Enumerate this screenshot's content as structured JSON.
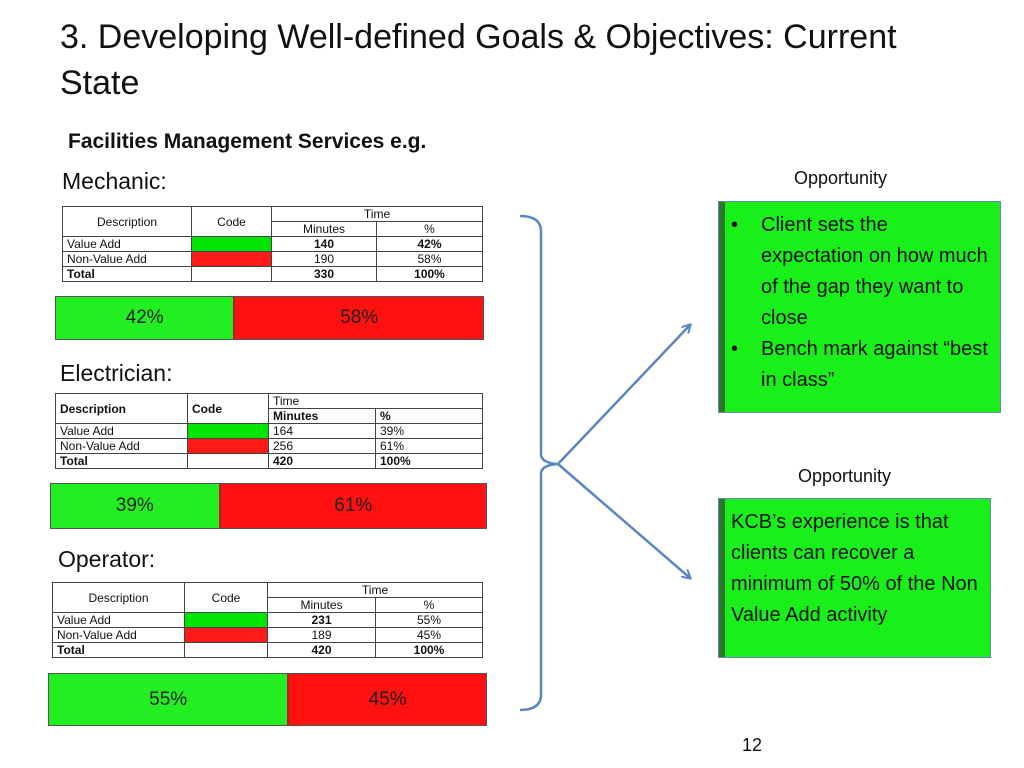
{
  "title": "3. Developing Well-defined Goals & Objectives: Current State",
  "subtitle": "Facilities Management Services e.g.",
  "sections": [
    {
      "label": "Mechanic:",
      "header": {
        "description": "Description",
        "code": "Code",
        "time": "Time",
        "minutes": "Minutes",
        "percent": "%"
      },
      "rows": [
        {
          "description": "Value Add",
          "minutes": "140",
          "percent": "42%"
        },
        {
          "description": "Non-Value Add",
          "minutes": "190",
          "percent": "58%"
        },
        {
          "description": "Total",
          "minutes": "330",
          "percent": "100%"
        }
      ],
      "bar": {
        "green_label": "42%",
        "red_label": "58%",
        "green_fraction": 0.42
      }
    },
    {
      "label": "Electrician:",
      "header": {
        "description": "Description",
        "code": "Code",
        "time": "Time",
        "minutes": "Minutes",
        "percent": "%"
      },
      "rows": [
        {
          "description": "Value Add",
          "minutes": "164",
          "percent": "39%"
        },
        {
          "description": "Non-Value Add",
          "minutes": "256",
          "percent": "61%"
        },
        {
          "description": "Total",
          "minutes": "420",
          "percent": "100%"
        }
      ],
      "bar": {
        "green_label": "39%",
        "red_label": "61%",
        "green_fraction": 0.39
      }
    },
    {
      "label": "Operator:",
      "header": {
        "description": "Description",
        "code": "Code",
        "time": "Time",
        "minutes": "Minutes",
        "percent": "%"
      },
      "rows": [
        {
          "description": "Value Add",
          "minutes": "231",
          "percent": "55%"
        },
        {
          "description": "Non-Value Add",
          "minutes": "189",
          "percent": "45%"
        },
        {
          "description": "Total",
          "minutes": "420",
          "percent": "100%"
        }
      ],
      "bar": {
        "green_label": "55%",
        "red_label": "45%",
        "green_fraction": 0.55
      }
    }
  ],
  "opportunities": [
    {
      "label": "Opportunity",
      "bullets": [
        "Client sets the expectation on how much of the gap they want to close",
        "Bench mark against “best in class”"
      ]
    },
    {
      "label": "Opportunity",
      "text": "KCB’s experience is that clients can recover a minimum of 50% of the Non Value Add activity"
    }
  ],
  "colors": {
    "value_add": "#00e600",
    "non_value_add": "#ff1a1a",
    "opportunity_box": "#19ef19",
    "connector": "#5b86c5"
  },
  "page_number": "12"
}
